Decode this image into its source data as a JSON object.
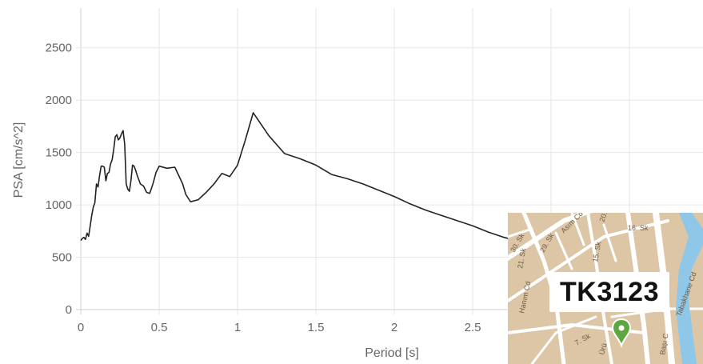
{
  "chart_data": {
    "type": "line",
    "title": "",
    "xlabel": "Period [s]",
    "ylabel": "PSA [cm/s^2]",
    "xlim": [
      0,
      3.1
    ],
    "ylim": [
      0,
      2700
    ],
    "xticks": [
      0,
      0.5,
      1,
      1.5,
      2,
      2.5
    ],
    "xtick_labels": [
      "0",
      "0.5",
      "1",
      "1.5",
      "2",
      "2.5"
    ],
    "yticks": [
      0,
      500,
      1000,
      1500,
      2000,
      2500
    ],
    "ytick_labels": [
      "0",
      "500",
      "1000",
      "1500",
      "2000",
      "2500"
    ],
    "grid": true,
    "series": [
      {
        "color": "#222222",
        "x": [
          0,
          0.01,
          0.02,
          0.03,
          0.04,
          0.05,
          0.06,
          0.07,
          0.08,
          0.09,
          0.1,
          0.11,
          0.12,
          0.13,
          0.14,
          0.15,
          0.16,
          0.17,
          0.18,
          0.19,
          0.2,
          0.21,
          0.22,
          0.23,
          0.24,
          0.25,
          0.26,
          0.27,
          0.28,
          0.29,
          0.3,
          0.31,
          0.32,
          0.33,
          0.34,
          0.35,
          0.36,
          0.38,
          0.4,
          0.42,
          0.44,
          0.46,
          0.48,
          0.5,
          0.55,
          0.6,
          0.65,
          0.67,
          0.7,
          0.75,
          0.8,
          0.85,
          0.9,
          0.95,
          1,
          1.05,
          1.1,
          1.2,
          1.3,
          1.4,
          1.5,
          1.6,
          1.7,
          1.8,
          1.9,
          2,
          2.1,
          2.2,
          2.3,
          2.4,
          2.5,
          2.6,
          2.7,
          2.75
        ],
        "y": [
          660,
          680,
          690,
          670,
          730,
          700,
          800,
          900,
          980,
          1020,
          1200,
          1170,
          1280,
          1370,
          1370,
          1360,
          1230,
          1300,
          1310,
          1390,
          1430,
          1530,
          1650,
          1670,
          1620,
          1640,
          1680,
          1710,
          1580,
          1200,
          1150,
          1130,
          1230,
          1380,
          1370,
          1330,
          1280,
          1200,
          1180,
          1120,
          1110,
          1200,
          1310,
          1370,
          1350,
          1360,
          1200,
          1100,
          1030,
          1050,
          1120,
          1200,
          1300,
          1270,
          1380,
          1620,
          1880,
          1660,
          1490,
          1440,
          1380,
          1290,
          1250,
          1200,
          1140,
          1080,
          1010,
          950,
          900,
          850,
          800,
          740,
          690,
          670
        ]
      }
    ]
  },
  "map": {
    "station_label": "TK3123",
    "streets": [
      "Asım Cd",
      "16. Sk",
      "20. Sk",
      "30. Sk",
      "29. Sk",
      "15. Sk",
      "21. Sk",
      "Hanım Cd",
      "Tabakhane Cd",
      "Başı C",
      "7. Sk",
      "Ürü"
    ],
    "pin_color": "#5ea640",
    "water_color": "#8ec7e8",
    "land_color": "#dcc6a6",
    "road_color": "#ffffff"
  }
}
